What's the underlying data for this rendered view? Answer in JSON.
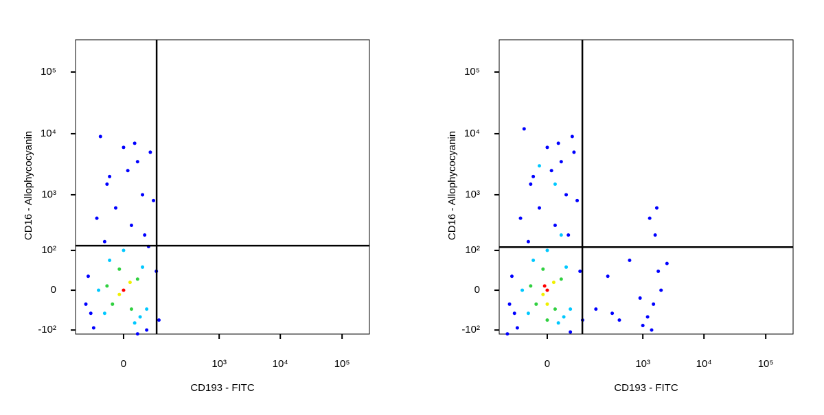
{
  "chart_data": [
    {
      "type": "scatter",
      "xlabel": "CD193 - FITC",
      "ylabel": "CD16 - Allophycocyanin",
      "xscale": "biexponential",
      "yscale": "biexponential",
      "xlim": [
        -146,
        277000
      ],
      "ylim": [
        -121,
        333000
      ],
      "xticks": [
        0,
        {
          "value": 1000,
          "label": "10³"
        },
        {
          "value": 10000,
          "label": "10⁴"
        },
        {
          "value": 100000,
          "label": "10⁵"
        }
      ],
      "yticks": [
        {
          "value": -100,
          "label": "-10²"
        },
        0,
        {
          "value": 100,
          "label": "10²"
        },
        {
          "value": 1000,
          "label": "10³"
        },
        {
          "value": 10000,
          "label": "10⁴"
        },
        {
          "value": 100000,
          "label": "10⁵"
        }
      ],
      "quadrant_gate": {
        "x": 71,
        "y": 125
      },
      "series": [
        {
          "color": "#0000ff",
          "x": [
            -60,
            40,
            -80,
            70,
            -30,
            10,
            -10,
            30,
            -20,
            20,
            0,
            -40,
            50,
            60,
            -70,
            80,
            20,
            -50,
            35,
            -25,
            5,
            45,
            -90,
            15
          ],
          "y": [
            -90,
            -100,
            20,
            30,
            150,
            300,
            600,
            1000,
            2000,
            3500,
            6000,
            9000,
            5000,
            800,
            -40,
            -60,
            -120,
            400,
            200,
            1500,
            2500,
            120,
            -20,
            7000
          ]
        },
        {
          "color": "#00c8ff",
          "x": [
            -30,
            30,
            -20,
            40,
            0,
            15,
            -45,
            25
          ],
          "y": [
            -40,
            40,
            60,
            -30,
            100,
            -70,
            0,
            -50
          ]
        },
        {
          "color": "#30d040",
          "x": [
            -15,
            20,
            -5,
            10,
            -25
          ],
          "y": [
            -20,
            15,
            35,
            -30,
            5
          ]
        },
        {
          "color": "#f0f000",
          "x": [
            -5,
            8
          ],
          "y": [
            -5,
            10
          ]
        },
        {
          "color": "#ff0000",
          "x": [
            0
          ],
          "y": [
            0
          ]
        }
      ]
    },
    {
      "type": "scatter",
      "xlabel": "CD193 - FITC",
      "ylabel": "CD16 - Allophycocyanin",
      "xscale": "biexponential",
      "yscale": "biexponential",
      "xlim": [
        -146,
        277000
      ],
      "ylim": [
        -121,
        333000
      ],
      "xticks": [
        0,
        {
          "value": 1000,
          "label": "10³"
        },
        {
          "value": 10000,
          "label": "10⁴"
        },
        {
          "value": 100000,
          "label": "10⁵"
        }
      ],
      "yticks": [
        {
          "value": -100,
          "label": "-10²"
        },
        0,
        {
          "value": 100,
          "label": "10²"
        },
        {
          "value": 1000,
          "label": "10³"
        },
        {
          "value": 10000,
          "label": "10⁴"
        },
        {
          "value": 100000,
          "label": "10⁵"
        }
      ],
      "quadrant_gate": {
        "x": 79,
        "y": 117
      },
      "series": [
        {
          "color": "#0000ff",
          "x": [
            -60,
            40,
            -80,
            70,
            -30,
            10,
            -10,
            30,
            -20,
            20,
            0,
            -40,
            50,
            60,
            -70,
            80,
            -100,
            -50,
            35,
            -25,
            5,
            45,
            -90,
            15,
            150,
            250,
            400,
            1200,
            1500,
            2000,
            1800,
            1000,
            1300,
            1600,
            2500,
            900,
            1400,
            300,
            600,
            1700
          ],
          "y": [
            -90,
            -110,
            20,
            30,
            150,
            300,
            600,
            1000,
            2000,
            3500,
            6000,
            12000,
            5000,
            800,
            -40,
            -60,
            -120,
            400,
            200,
            1500,
            2500,
            9000,
            -20,
            7000,
            -30,
            20,
            -60,
            -50,
            -20,
            0,
            30,
            -80,
            400,
            200,
            50,
            -10,
            -100,
            -40,
            60,
            600
          ]
        },
        {
          "color": "#00c8ff",
          "x": [
            -30,
            30,
            -20,
            40,
            0,
            15,
            -45,
            25,
            -10,
            20,
            10
          ],
          "y": [
            -40,
            40,
            60,
            -30,
            100,
            -70,
            0,
            -50,
            3000,
            200,
            1500
          ]
        },
        {
          "color": "#30d040",
          "x": [
            -15,
            20,
            -5,
            10,
            -25,
            0
          ],
          "y": [
            -20,
            15,
            35,
            -30,
            5,
            -60
          ]
        },
        {
          "color": "#f0f000",
          "x": [
            -5,
            8,
            0
          ],
          "y": [
            -5,
            10,
            -20
          ]
        },
        {
          "color": "#ff0000",
          "x": [
            0,
            -3
          ],
          "y": [
            0,
            5
          ]
        }
      ]
    }
  ]
}
